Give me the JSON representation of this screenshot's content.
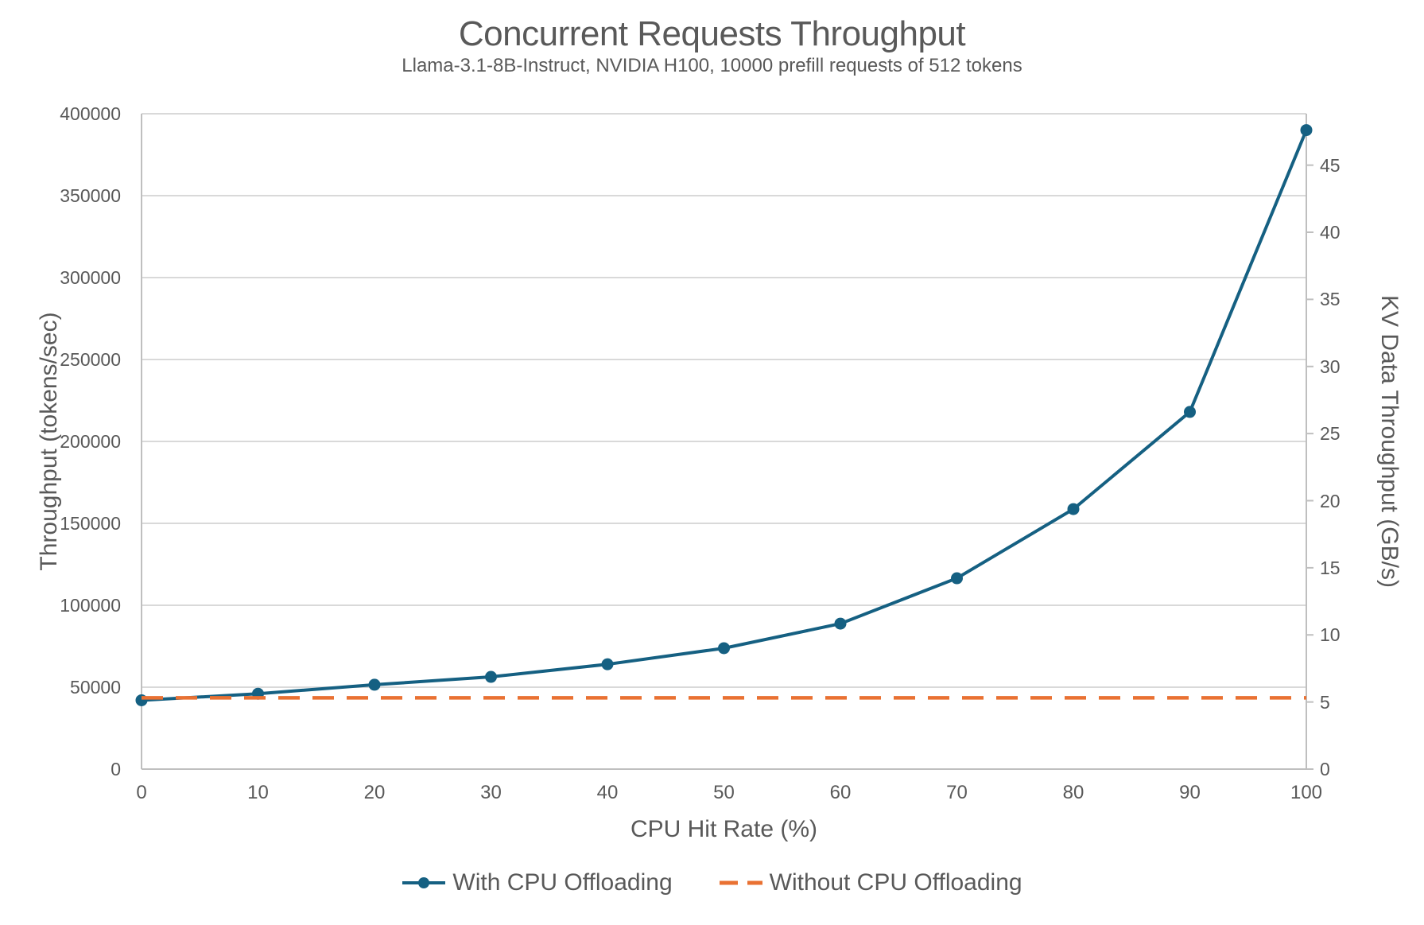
{
  "chart_data": {
    "type": "line",
    "title": "Concurrent Requests Throughput",
    "subtitle": "Llama-3.1-8B-Instruct, NVIDIA H100, 10000 prefill requests of 512 tokens",
    "xlabel": "CPU Hit Rate (%)",
    "ylabel": "Throughput (tokens/sec)",
    "ylabel_right": "KV Data Throughput (GB/s)",
    "x": [
      0,
      10,
      20,
      30,
      40,
      50,
      60,
      70,
      80,
      90,
      100
    ],
    "series": [
      {
        "name": "With CPU Offloading",
        "axis": "left",
        "line_style": "solid",
        "marker": "circle",
        "color": "#156082",
        "values": [
          42000,
          46000,
          51500,
          56300,
          64000,
          73800,
          88800,
          116500,
          158700,
          218000,
          390000
        ]
      },
      {
        "name": "Without CPU Offloading",
        "axis": "left",
        "line_style": "dashed",
        "marker": "none",
        "color": "#E97132",
        "values": [
          43500,
          43500,
          43500,
          43500,
          43500,
          43500,
          43500,
          43500,
          43500,
          43500,
          43500
        ]
      }
    ],
    "x_axis": {
      "min": 0,
      "max": 100,
      "tick_step": 10,
      "tick_labels": [
        "0",
        "10",
        "20",
        "30",
        "40",
        "50",
        "60",
        "70",
        "80",
        "90",
        "100"
      ]
    },
    "y_left_axis": {
      "min": 0,
      "max": 400000,
      "tick_step": 50000,
      "tick_labels": [
        "0",
        "50000",
        "100000",
        "150000",
        "200000",
        "250000",
        "300000",
        "350000",
        "400000"
      ]
    },
    "y_right_axis": {
      "min": 0,
      "max": 48.83,
      "tick_step": 5,
      "tick_labels": [
        "0",
        "5",
        "10",
        "15",
        "20",
        "25",
        "30",
        "35",
        "40",
        "45"
      ]
    },
    "grid": "horizontal",
    "legend_position": "bottom",
    "colors": {
      "grid": "#D9D9D9",
      "axis": "#BFBFBF",
      "text": "#595959",
      "background": "#FFFFFF",
      "series1": "#156082",
      "series2": "#E97132"
    }
  }
}
